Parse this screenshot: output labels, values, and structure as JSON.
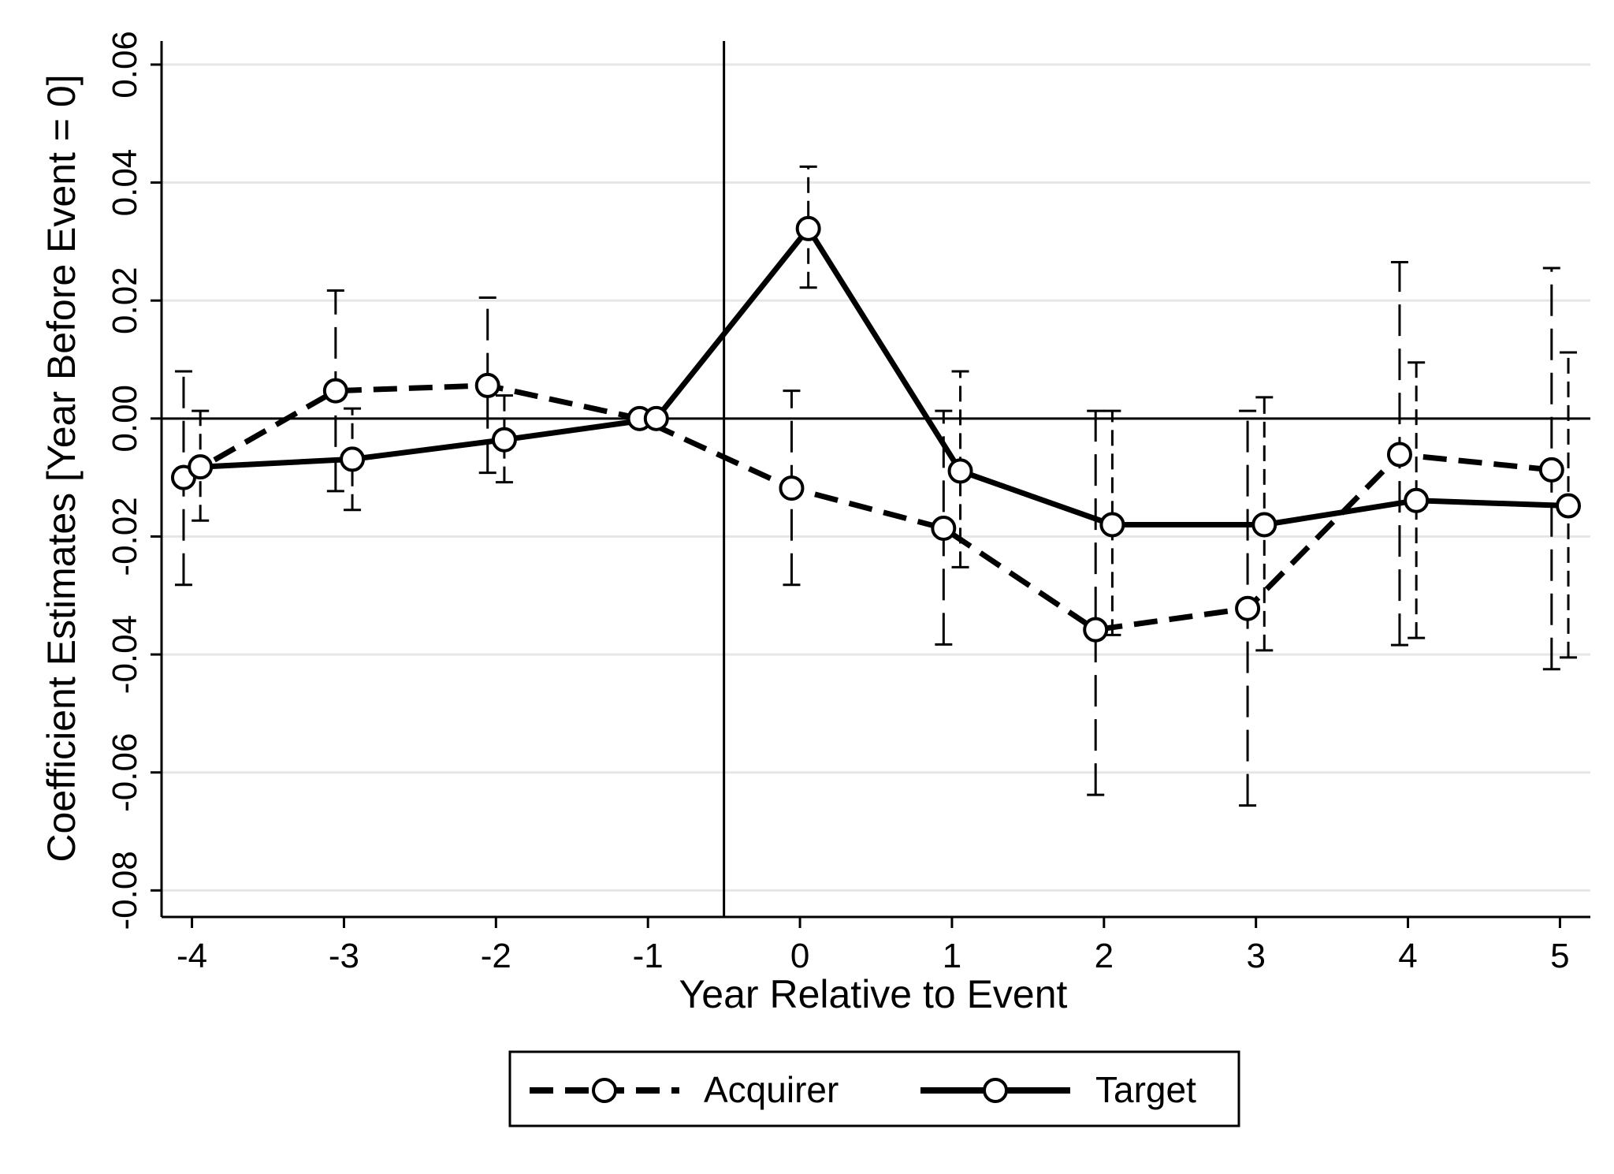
{
  "chart_data": {
    "type": "line",
    "xlabel": "Year Relative to Event",
    "ylabel": "Coefficient Estimates [Year Before Event = 0]",
    "x_ticks": [
      "-4",
      "-3",
      "-2",
      "-1",
      "0",
      "1",
      "2",
      "3",
      "4",
      "5"
    ],
    "y_ticks": [
      "-0.08",
      "-0.06",
      "-0.04",
      "-0.02",
      "0.00",
      "0.02",
      "0.04",
      "0.06"
    ],
    "xlim": [
      -4.2,
      5.2
    ],
    "ylim": [
      -0.0845,
      0.064
    ],
    "grid": true,
    "reference_lines": {
      "vertical_x": -0.5,
      "horizontal_y": 0
    },
    "legend_position": "bottom",
    "series": [
      {
        "name": "Acquirer",
        "style": "dashed",
        "color": "#000000",
        "x": [
          -4,
          -3,
          -2,
          -1,
          0,
          1,
          2,
          3,
          4,
          5
        ],
        "y": [
          -0.01,
          0.0047,
          0.0056,
          0.0,
          -0.0118,
          -0.0186,
          -0.0358,
          -0.0322,
          -0.0061,
          -0.0087
        ],
        "ci_low": [
          -0.0282,
          -0.0123,
          -0.0092,
          0.0,
          -0.0282,
          -0.0383,
          -0.0638,
          -0.0656,
          -0.0384,
          -0.0425
        ],
        "ci_high": [
          0.008,
          0.0217,
          0.0205,
          0.0,
          0.0047,
          0.0013,
          0.0013,
          0.0013,
          0.0265,
          0.0255
        ]
      },
      {
        "name": "Target",
        "style": "solid",
        "color": "#000000",
        "x": [
          -4,
          -3,
          -2,
          -1,
          0,
          1,
          2,
          3,
          4,
          5
        ],
        "y": [
          -0.0082,
          -0.0069,
          -0.0036,
          0.0,
          0.0322,
          -0.0089,
          -0.018,
          -0.018,
          -0.0139,
          -0.0148
        ],
        "ci_low": [
          -0.0173,
          -0.0155,
          -0.0108,
          0.0,
          0.0222,
          -0.0252,
          -0.0367,
          -0.0393,
          -0.0372,
          -0.0405
        ],
        "ci_high": [
          0.0013,
          0.0017,
          0.0039,
          0.0,
          0.0427,
          0.008,
          0.0013,
          0.0036,
          0.0095,
          0.0112
        ]
      }
    ]
  }
}
